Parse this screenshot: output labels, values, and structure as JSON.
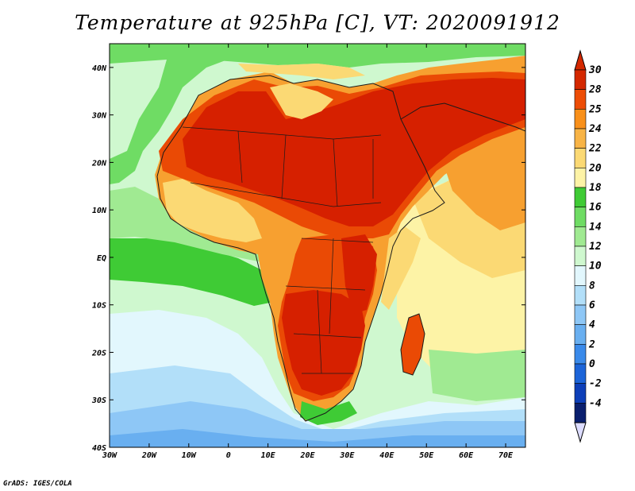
{
  "title": "Temperature at 925hPa [C], VT: 2020091912",
  "credit": "GrADS: IGES/COLA",
  "variable": {
    "name": "Temperature",
    "level": "925hPa",
    "units": "C",
    "valid_time": "2020091912"
  },
  "map": {
    "region": "Africa",
    "lon_labels": [
      "30W",
      "20W",
      "10W",
      "0",
      "10E",
      "20E",
      "30E",
      "40E",
      "50E",
      "60E",
      "70E"
    ],
    "lat_labels": [
      "40N",
      "30N",
      "20N",
      "10N",
      "EQ",
      "10S",
      "20S",
      "30S",
      "40S"
    ],
    "lon_range": [
      -30,
      75
    ],
    "lat_range": [
      -40,
      45
    ]
  },
  "colorbar": {
    "labels": [
      "30",
      "28",
      "25",
      "24",
      "22",
      "20",
      "18",
      "16",
      "14",
      "12",
      "10",
      "8",
      "6",
      "4",
      "2",
      "0",
      "-2",
      "-4"
    ],
    "colors": [
      "#d42800",
      "#ed4d06",
      "#f9901a",
      "#f8b446",
      "#fbd974",
      "#fdf3a6",
      "#3fcb35",
      "#6fdc64",
      "#a0ea92",
      "#cff8cf",
      "#e2f7fd",
      "#b2dff9",
      "#8ec7f6",
      "#69aff0",
      "#3a8aea",
      "#1c64d8",
      "#0d3fb8",
      "#0a1f6e"
    ],
    "upper_arrow_color": "#d42800",
    "lower_arrow_color": "#dcdcff"
  },
  "colors": {
    "very_hot": "#d62000",
    "hot": "#ea4a05",
    "warm": "#f7a030",
    "mild": "#fbd974",
    "pale": "#fdf3a6",
    "green": "#3fcb35",
    "light_green": "#a0ea92",
    "pale_green": "#cff8cf",
    "pale_blue": "#e2f7fd",
    "light_blue": "#b2dff9",
    "blue": "#8ec7f6",
    "mid_blue": "#69aff0"
  }
}
